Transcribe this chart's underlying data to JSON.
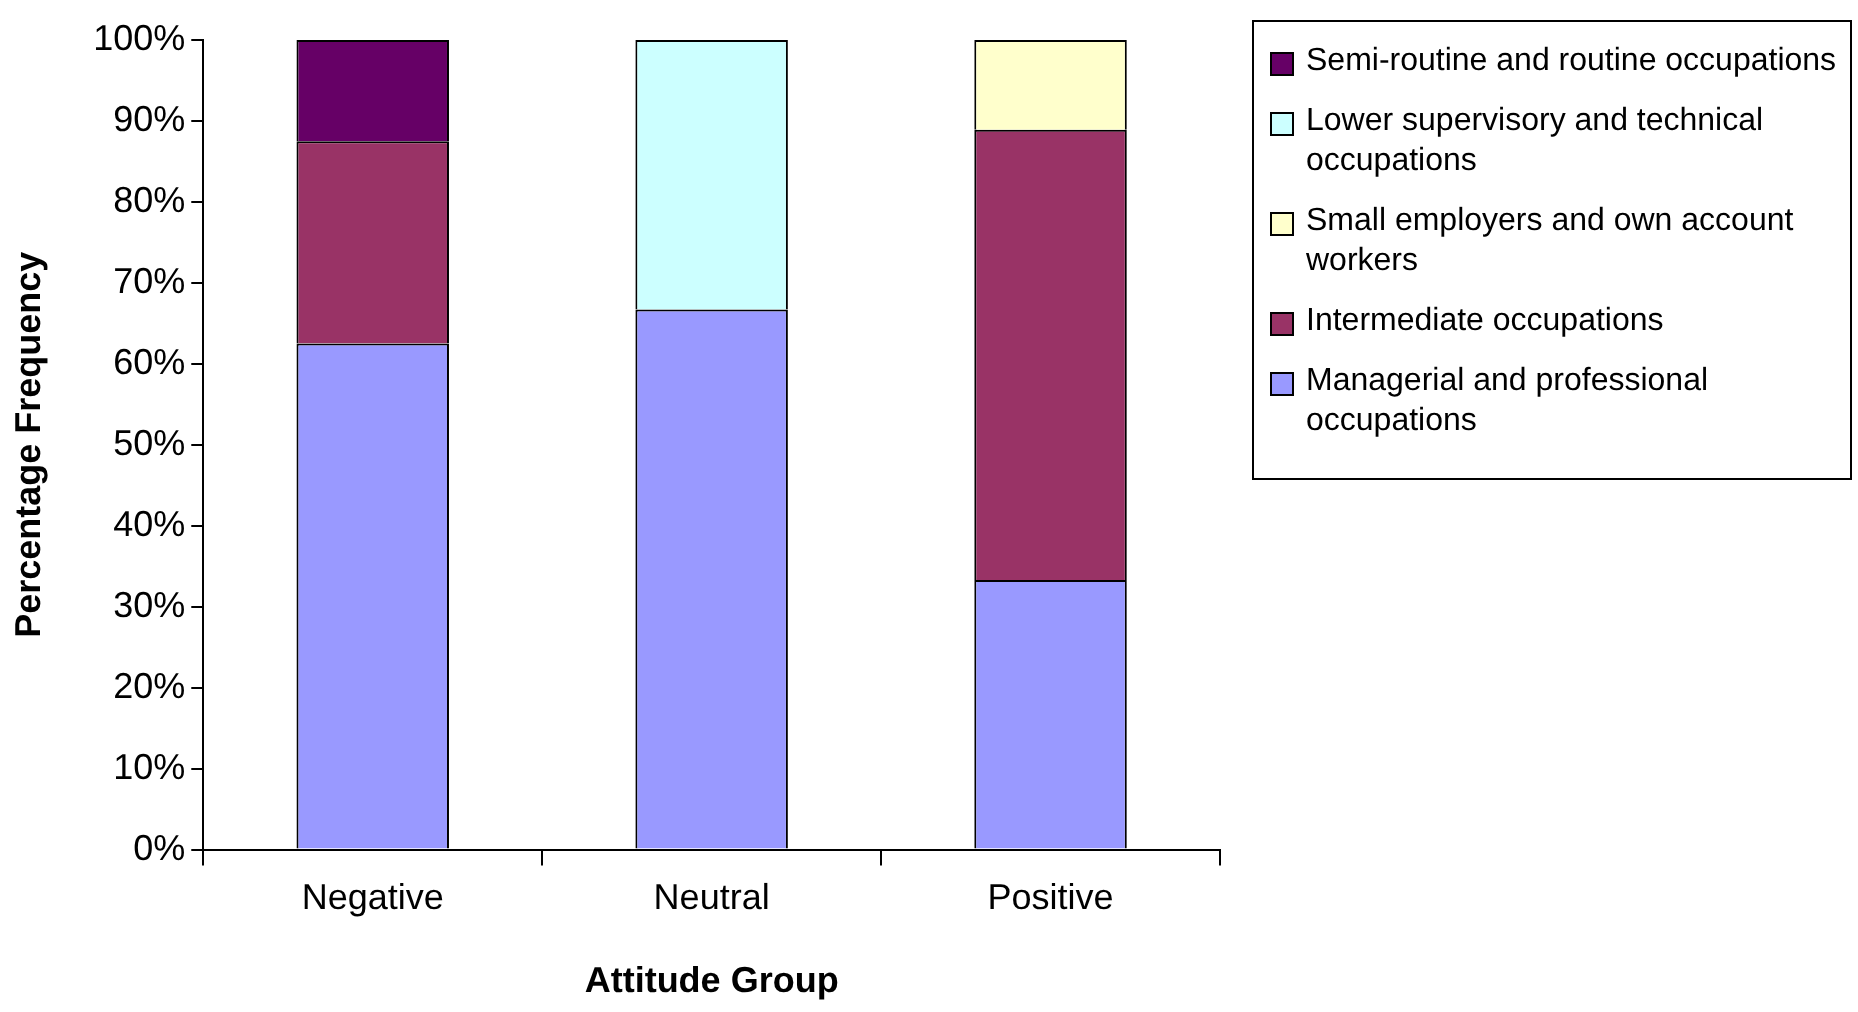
{
  "chart_data": {
    "type": "bar",
    "stacked": true,
    "xlabel": "Attitude Group",
    "ylabel": "Percentage Frequency",
    "categories": [
      "Negative",
      "Neutral",
      "Positive"
    ],
    "series": [
      {
        "name": "Managerial and professional occupations",
        "color": "#9999ff",
        "values": [
          62.5,
          66.7,
          33.3
        ]
      },
      {
        "name": "Intermediate occupations",
        "color": "#993366",
        "values": [
          25,
          0,
          55.6
        ]
      },
      {
        "name": "Small employers and own account workers",
        "color": "#ffffcc",
        "values": [
          0,
          0,
          11.1
        ]
      },
      {
        "name": "Lower supervisory and technical occupations",
        "color": "#ccffff",
        "values": [
          0,
          33.3,
          0
        ]
      },
      {
        "name": "Semi-routine and routine occupations",
        "color": "#660066",
        "values": [
          12.5,
          0,
          0
        ]
      }
    ],
    "ylim": [
      0,
      100
    ],
    "yticks": [
      {
        "value": 0,
        "label": "0%"
      },
      {
        "value": 10,
        "label": "10%"
      },
      {
        "value": 20,
        "label": "20%"
      },
      {
        "value": 30,
        "label": "30%"
      },
      {
        "value": 40,
        "label": "40%"
      },
      {
        "value": 50,
        "label": "50%"
      },
      {
        "value": 60,
        "label": "60%"
      },
      {
        "value": 70,
        "label": "70%"
      },
      {
        "value": 80,
        "label": "80%"
      },
      {
        "value": 90,
        "label": "90%"
      },
      {
        "value": 100,
        "label": "100%"
      }
    ],
    "grid": false,
    "legend": "right"
  }
}
